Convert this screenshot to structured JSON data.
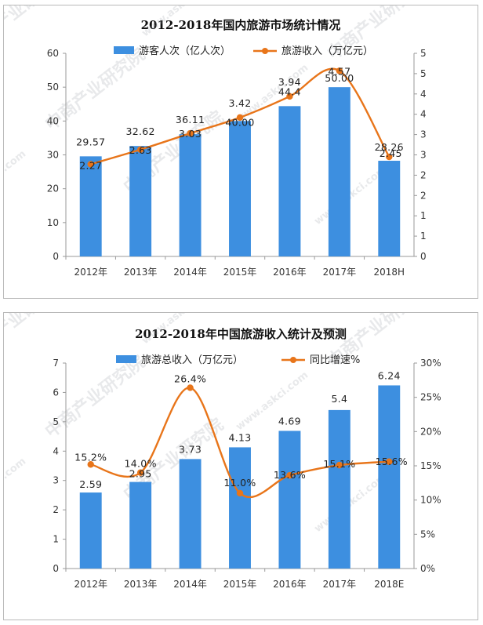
{
  "chart_data": [
    {
      "type": "bar",
      "title": "2012-2018年国内旅游市场统计情况",
      "categories": [
        "2012年",
        "2013年",
        "2014年",
        "2015年",
        "2016年",
        "2017年",
        "2018H"
      ],
      "series": [
        {
          "name": "游客人次（亿人次）",
          "type": "bar",
          "axis": "left",
          "color": "#3d8fe0",
          "values": [
            29.57,
            32.62,
            36.11,
            40.0,
            44.4,
            50.0,
            28.26
          ],
          "labels": [
            "29.57",
            "32.62",
            "36.11",
            "40.00",
            "44.4",
            "50.00",
            "28.26"
          ]
        },
        {
          "name": "旅游收入（万亿元）",
          "type": "line",
          "axis": "right",
          "color": "#e8751a",
          "values": [
            2.27,
            2.63,
            3.03,
            3.42,
            3.94,
            4.57,
            2.45
          ],
          "labels": [
            "2.27",
            "2.63",
            "3.03",
            "3.42",
            "3.94",
            "4.57",
            "2.45"
          ]
        }
      ],
      "ylim_left": [
        0,
        60
      ],
      "yticks_left": [
        "0",
        "10",
        "20",
        "30",
        "40",
        "50",
        "60"
      ],
      "ylim_right": [
        0,
        5
      ],
      "yticks_right": [
        "0",
        "1",
        "1",
        "2",
        "2",
        "3",
        "3",
        "4",
        "4",
        "5",
        "5"
      ],
      "legend_position": "top",
      "grid": false
    },
    {
      "type": "bar",
      "title": "2012-2018年中国旅游收入统计及预测",
      "categories": [
        "2012年",
        "2013年",
        "2014年",
        "2015年",
        "2016年",
        "2017年",
        "2018E"
      ],
      "series": [
        {
          "name": "旅游总收入（万亿元）",
          "type": "bar",
          "axis": "left",
          "color": "#3d8fe0",
          "values": [
            2.59,
            2.95,
            3.73,
            4.13,
            4.69,
            5.4,
            6.24
          ],
          "labels": [
            "2.59",
            "2.95",
            "3.73",
            "4.13",
            "4.69",
            "5.4",
            "6.24"
          ]
        },
        {
          "name": "同比增速%",
          "type": "line",
          "axis": "right",
          "color": "#e8751a",
          "values": [
            15.2,
            14.0,
            26.4,
            11.0,
            13.6,
            15.1,
            15.6
          ],
          "labels": [
            "15.2%",
            "14.0%",
            "26.4%",
            "11.0%",
            "13.6%",
            "15.1%",
            "15.6%"
          ]
        }
      ],
      "ylim_left": [
        0,
        7
      ],
      "yticks_left": [
        "0",
        "1",
        "2",
        "3",
        "4",
        "5",
        "6",
        "7"
      ],
      "ylim_right": [
        0,
        30
      ],
      "yticks_right": [
        "0%",
        "5%",
        "10%",
        "15%",
        "20%",
        "25%",
        "30%"
      ],
      "legend_position": "top",
      "grid": false
    }
  ],
  "watermark": "中商产业研究院",
  "watermark_url": "www.askci.com",
  "colors": {
    "bar": "#3d8fe0",
    "line": "#e8751a",
    "axis": "#9a9a9a"
  }
}
